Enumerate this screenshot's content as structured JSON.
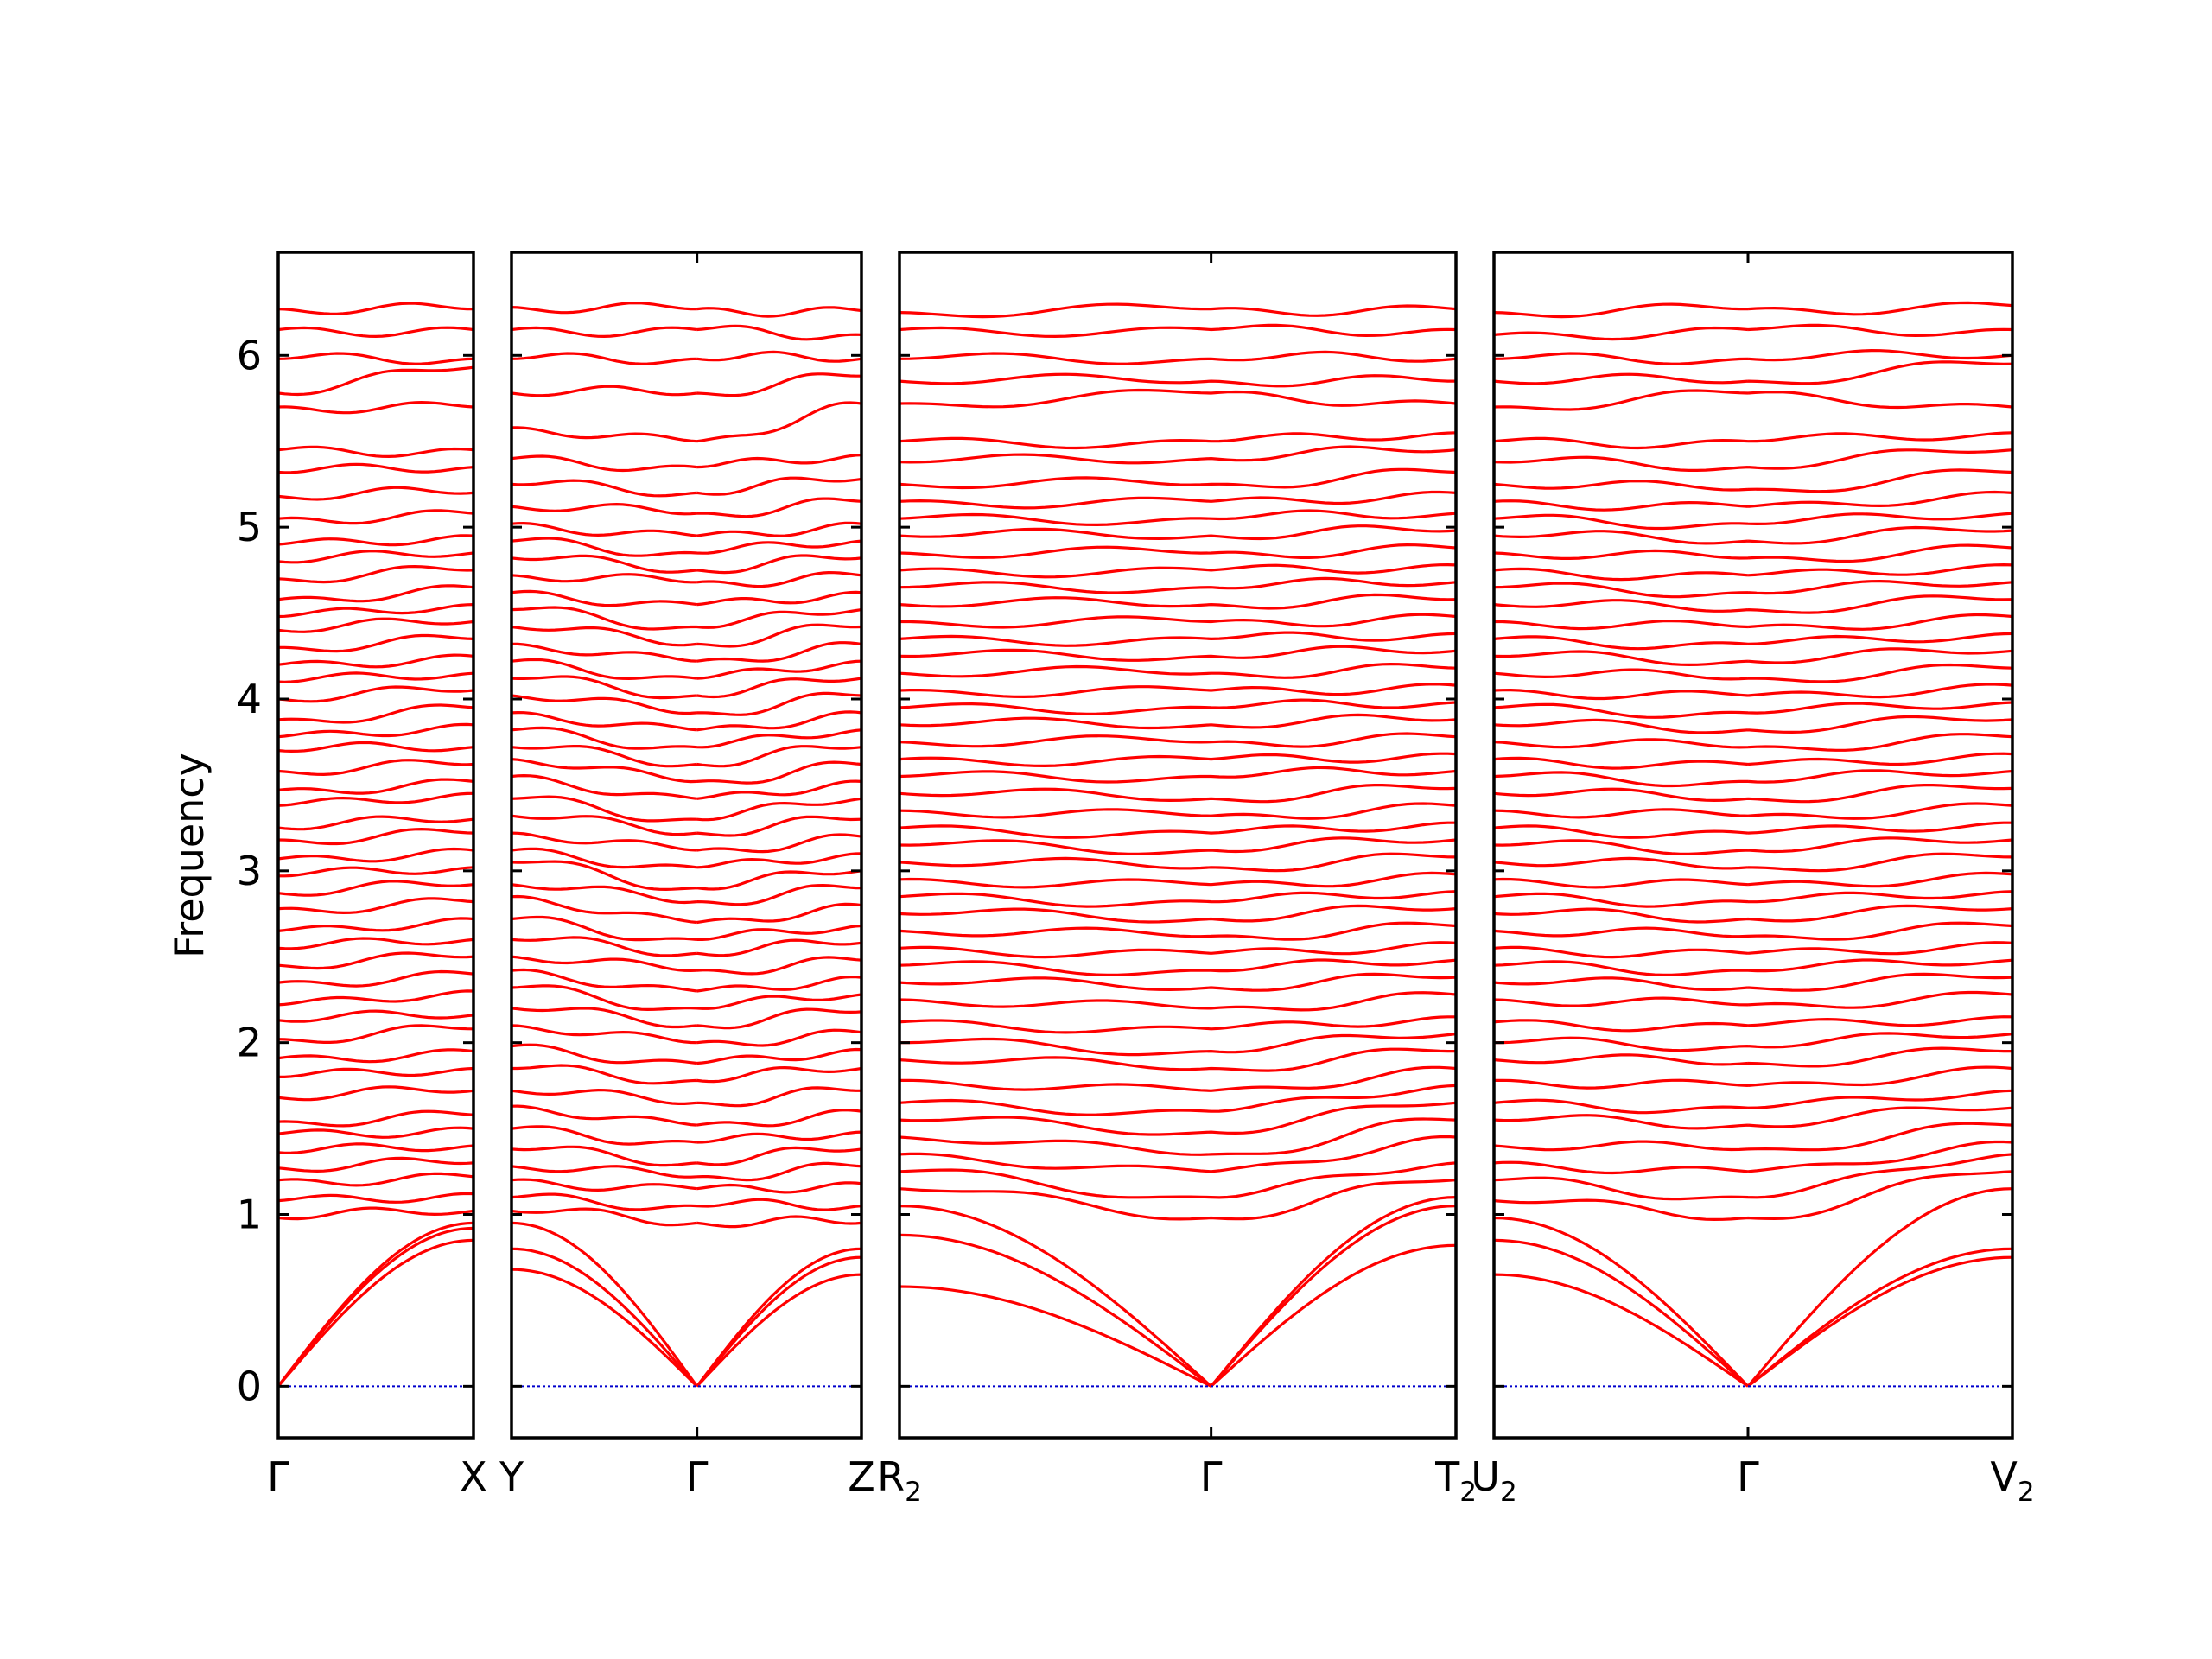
{
  "chart_data": {
    "type": "line",
    "ylabel": "Frequency",
    "ylim": [
      -0.3,
      6.6
    ],
    "yticks": [
      0,
      1,
      2,
      3,
      4,
      5,
      6
    ],
    "grid": false,
    "line_color": "#ff0000",
    "zero_line_color": "#0000cc",
    "panels": [
      {
        "labels": [
          {
            "t": "Γ"
          },
          {
            "t": "X"
          }
        ],
        "bands": {
          "start": [
            0,
            0,
            0,
            0.98,
            1.08,
            1.2,
            1.27,
            1.36,
            1.47,
            1.54,
            1.68,
            1.8,
            1.91,
            2.02,
            2.13,
            2.22,
            2.35,
            2.45,
            2.55,
            2.65,
            2.78,
            2.87,
            2.97,
            3.07,
            3.18,
            3.25,
            3.38,
            3.47,
            3.58,
            3.7,
            3.78,
            3.88,
            4.0,
            4.1,
            4.2,
            4.3,
            4.4,
            4.48,
            4.58,
            4.7,
            4.8,
            4.9,
            5.05,
            5.18,
            5.32,
            5.45,
            5.7,
            5.78,
            5.98,
            6.15,
            6.27
          ],
          "end": [
            0.85,
            0.92,
            0.95,
            1.02,
            1.12,
            1.22,
            1.3,
            1.4,
            1.5,
            1.58,
            1.72,
            1.85,
            1.95,
            2.08,
            2.16,
            2.3,
            2.4,
            2.5,
            2.6,
            2.72,
            2.82,
            2.92,
            3.02,
            3.12,
            3.22,
            3.3,
            3.45,
            3.52,
            3.62,
            3.72,
            3.85,
            3.95,
            4.05,
            4.15,
            4.25,
            4.35,
            4.45,
            4.55,
            4.65,
            4.75,
            4.85,
            4.95,
            5.08,
            5.2,
            5.35,
            5.45,
            5.7,
            5.93,
            5.98,
            6.15,
            6.27
          ],
          "acoustic": 3
        }
      },
      {
        "labels": [
          {
            "t": "Y"
          },
          {
            "t": "Γ"
          },
          {
            "t": "Z"
          }
        ],
        "gamma": 0.53,
        "bands": {
          "start": [
            0.68,
            0.8,
            0.95,
            1.02,
            1.1,
            1.2,
            1.28,
            1.38,
            1.5,
            1.63,
            1.72,
            1.85,
            1.98,
            2.1,
            2.2,
            2.32,
            2.42,
            2.5,
            2.6,
            2.72,
            2.85,
            2.92,
            3.05,
            3.12,
            3.22,
            3.32,
            3.42,
            3.55,
            3.65,
            3.72,
            3.82,
            3.92,
            4.02,
            4.12,
            4.22,
            4.32,
            4.42,
            4.52,
            4.62,
            4.72,
            4.82,
            4.92,
            5.02,
            5.12,
            5.25,
            5.4,
            5.58,
            5.78,
            5.98,
            6.15,
            6.28
          ],
          "end": [
            0.65,
            0.75,
            0.8,
            0.95,
            1.05,
            1.18,
            1.28,
            1.38,
            1.48,
            1.6,
            1.72,
            1.85,
            1.96,
            2.06,
            2.18,
            2.28,
            2.38,
            2.48,
            2.58,
            2.68,
            2.8,
            2.9,
            3.0,
            3.1,
            3.2,
            3.3,
            3.42,
            3.52,
            3.62,
            3.72,
            3.82,
            3.92,
            4.02,
            4.12,
            4.22,
            4.32,
            4.42,
            4.52,
            4.62,
            4.72,
            4.82,
            4.92,
            5.02,
            5.15,
            5.28,
            5.42,
            5.72,
            5.88,
            5.98,
            6.12,
            6.26
          ],
          "mid": [
            0,
            0,
            0,
            0.95,
            1.05,
            1.15,
            1.22,
            1.3,
            1.42,
            1.52,
            1.65,
            1.78,
            1.88,
            2.0,
            2.1,
            2.2,
            2.3,
            2.42,
            2.52,
            2.6,
            2.7,
            2.82,
            2.9,
            3.02,
            3.12,
            3.22,
            3.3,
            3.42,
            3.52,
            3.62,
            3.72,
            3.82,
            3.92,
            4.02,
            4.12,
            4.22,
            4.32,
            4.42,
            4.55,
            4.68,
            4.75,
            4.85,
            4.95,
            5.08,
            5.2,
            5.35,
            5.5,
            5.78,
            5.98,
            6.15,
            6.27
          ],
          "acoustic": 3
        }
      },
      {
        "labels": [
          {
            "t": "R",
            "sub": "2"
          },
          {
            "t": "Γ"
          },
          {
            "t": "T",
            "sub": "2"
          }
        ],
        "gamma": 0.56,
        "bands": {
          "start": [
            0.58,
            0.88,
            1.05,
            1.15,
            1.25,
            1.35,
            1.45,
            1.55,
            1.65,
            1.78,
            1.9,
            2.0,
            2.12,
            2.25,
            2.35,
            2.45,
            2.55,
            2.65,
            2.75,
            2.85,
            2.95,
            3.05,
            3.15,
            3.25,
            3.35,
            3.45,
            3.55,
            3.65,
            3.75,
            3.85,
            3.95,
            4.05,
            4.15,
            4.25,
            4.35,
            4.45,
            4.55,
            4.65,
            4.75,
            4.85,
            4.95,
            5.05,
            5.15,
            5.25,
            5.38,
            5.5,
            5.72,
            5.85,
            5.98,
            6.15,
            6.25
          ],
          "end": [
            0.82,
            1.05,
            1.1,
            1.2,
            1.3,
            1.45,
            1.55,
            1.65,
            1.75,
            1.85,
            1.95,
            2.05,
            2.15,
            2.28,
            2.38,
            2.48,
            2.58,
            2.68,
            2.78,
            2.88,
            2.98,
            3.08,
            3.18,
            3.28,
            3.38,
            3.48,
            3.58,
            3.68,
            3.78,
            3.88,
            3.98,
            4.08,
            4.18,
            4.28,
            4.38,
            4.48,
            4.58,
            4.68,
            4.78,
            4.88,
            4.98,
            5.08,
            5.2,
            5.32,
            5.45,
            5.55,
            5.72,
            5.85,
            5.98,
            6.15,
            6.27
          ],
          "mid": [
            0,
            0,
            0,
            0.98,
            1.1,
            1.25,
            1.35,
            1.48,
            1.6,
            1.72,
            1.85,
            1.95,
            2.08,
            2.2,
            2.32,
            2.42,
            2.52,
            2.62,
            2.72,
            2.82,
            2.92,
            3.02,
            3.12,
            3.22,
            3.32,
            3.42,
            3.55,
            3.65,
            3.75,
            3.85,
            3.95,
            4.05,
            4.15,
            4.25,
            4.35,
            4.45,
            4.55,
            4.65,
            4.75,
            4.85,
            4.95,
            5.05,
            5.15,
            5.25,
            5.4,
            5.5,
            5.78,
            5.85,
            5.98,
            6.15,
            6.27
          ],
          "acoustic": 3
        }
      },
      {
        "labels": [
          {
            "t": "U",
            "sub": "2"
          },
          {
            "t": "Γ"
          },
          {
            "t": "V",
            "sub": "2"
          }
        ],
        "gamma": 0.49,
        "bands": {
          "start": [
            0.65,
            0.85,
            0.98,
            1.08,
            1.2,
            1.3,
            1.4,
            1.55,
            1.65,
            1.78,
            1.9,
            2.0,
            2.12,
            2.25,
            2.35,
            2.45,
            2.55,
            2.65,
            2.75,
            2.85,
            2.95,
            3.05,
            3.15,
            3.25,
            3.35,
            3.45,
            3.55,
            3.65,
            3.75,
            3.85,
            3.95,
            4.05,
            4.15,
            4.25,
            4.35,
            4.45,
            4.55,
            4.65,
            4.75,
            4.85,
            4.95,
            5.05,
            5.15,
            5.25,
            5.38,
            5.5,
            5.7,
            5.85,
            5.98,
            6.12,
            6.25
          ],
          "end": [
            0.75,
            0.8,
            1.15,
            1.25,
            1.35,
            1.42,
            1.52,
            1.62,
            1.72,
            1.85,
            1.95,
            2.05,
            2.15,
            2.28,
            2.38,
            2.48,
            2.58,
            2.68,
            2.78,
            2.88,
            2.98,
            3.08,
            3.18,
            3.28,
            3.38,
            3.48,
            3.58,
            3.68,
            3.78,
            3.88,
            3.98,
            4.08,
            4.18,
            4.28,
            4.38,
            4.48,
            4.58,
            4.68,
            4.78,
            4.88,
            4.98,
            5.08,
            5.2,
            5.32,
            5.45,
            5.55,
            5.7,
            5.95,
            6.0,
            6.15,
            6.29
          ],
          "mid": [
            0,
            0,
            0,
            0.98,
            1.1,
            1.25,
            1.38,
            1.52,
            1.62,
            1.75,
            1.88,
            1.98,
            2.1,
            2.22,
            2.32,
            2.42,
            2.52,
            2.62,
            2.72,
            2.82,
            2.92,
            3.02,
            3.12,
            3.22,
            3.32,
            3.42,
            3.52,
            3.62,
            3.72,
            3.82,
            3.92,
            4.02,
            4.12,
            4.22,
            4.32,
            4.42,
            4.52,
            4.62,
            4.72,
            4.82,
            4.92,
            5.02,
            5.12,
            5.22,
            5.35,
            5.5,
            5.78,
            5.85,
            5.98,
            6.15,
            6.27
          ],
          "acoustic": 3
        }
      }
    ]
  }
}
